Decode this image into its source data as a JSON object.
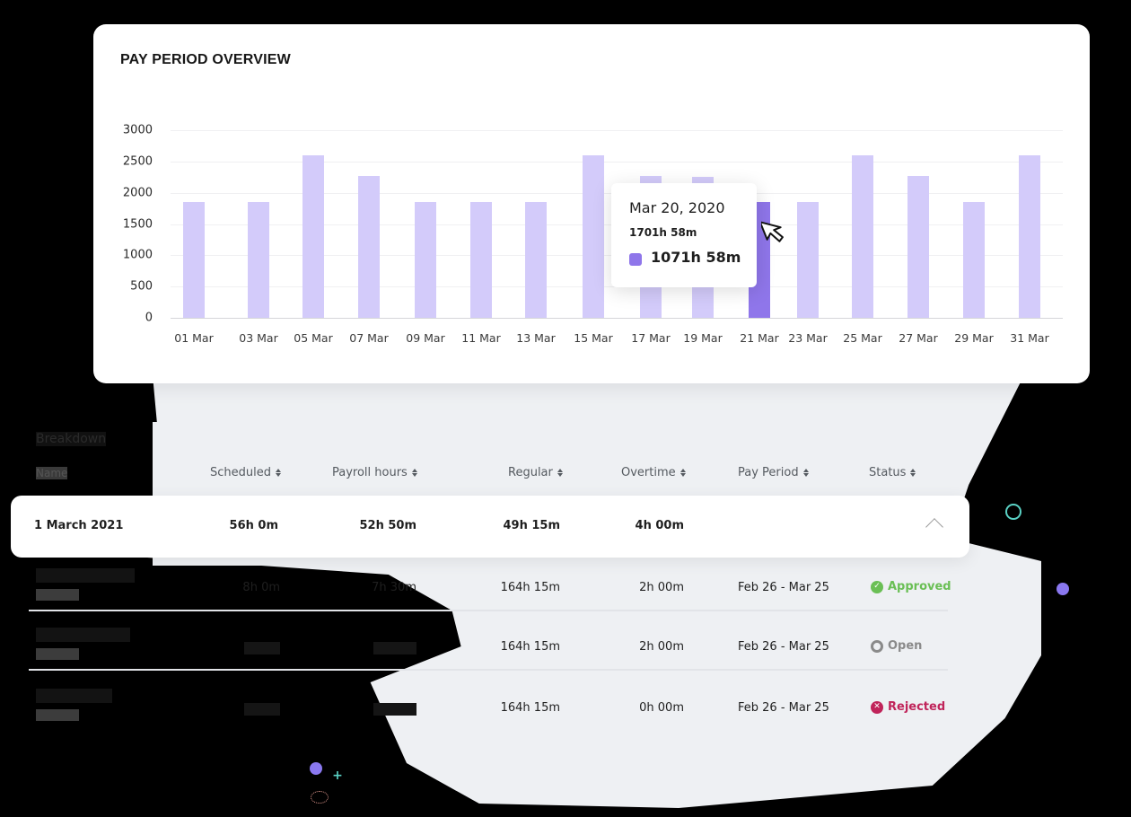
{
  "chart_card": {
    "title": "PAY PERIOD OVERVIEW"
  },
  "chart_data": {
    "type": "bar",
    "title": "PAY PERIOD OVERVIEW",
    "xlabel": "",
    "ylabel": "",
    "ylim": [
      0,
      3000
    ],
    "yticks": [
      0,
      500,
      1000,
      1500,
      2000,
      2500,
      3000
    ],
    "grid": true,
    "categories": [
      "01 Mar",
      "03 Mar",
      "05 Mar",
      "07 Mar",
      "09 Mar",
      "11 Mar",
      "13 Mar",
      "15 Mar",
      "17 Mar",
      "19 Mar",
      "21 Mar",
      "23 Mar",
      "25 Mar",
      "27 Mar",
      "29 Mar",
      "31 Mar"
    ],
    "values": [
      1850,
      1850,
      2600,
      2270,
      1850,
      1850,
      1850,
      2600,
      2270,
      2250,
      1850,
      1850,
      2600,
      2270,
      1850,
      2600
    ],
    "highlighted_index": 10,
    "colors": {
      "bar": "#d3cbfa",
      "highlight": "#8f76ea"
    },
    "tooltip": {
      "date": "Mar 20, 2020",
      "total": "1701h 58m",
      "value": "1071h 58m"
    }
  },
  "breakdown": {
    "title": "Breakdown",
    "name_header": "Name",
    "columns": [
      "Scheduled",
      "Payroll hours",
      "Regular",
      "Overtime",
      "Pay Period",
      "Status"
    ],
    "summary_row": {
      "label": "1 March 2021",
      "scheduled": "56h 0m",
      "payroll_hours": "52h 50m",
      "regular": "49h 15m",
      "overtime": "4h 00m",
      "expanded": true
    },
    "rows": [
      {
        "scheduled": "8h 0m",
        "payroll_hours": "7h 30m",
        "regular": "164h 15m",
        "overtime": "2h 00m",
        "pay_period": "Feb 26 - Mar 25",
        "status": "Approved",
        "status_color": "#6abf55"
      },
      {
        "scheduled": "",
        "payroll_hours": "",
        "regular": "164h 15m",
        "overtime": "2h 00m",
        "pay_period": "Feb 26 - Mar 25",
        "status": "Open",
        "status_color": "#8a8a8a"
      },
      {
        "scheduled": "",
        "payroll_hours": "",
        "regular": "164h 15m",
        "overtime": "0h 00m",
        "pay_period": "Feb 26 - Mar 25",
        "status": "Rejected",
        "status_color": "#c0245a"
      }
    ]
  }
}
